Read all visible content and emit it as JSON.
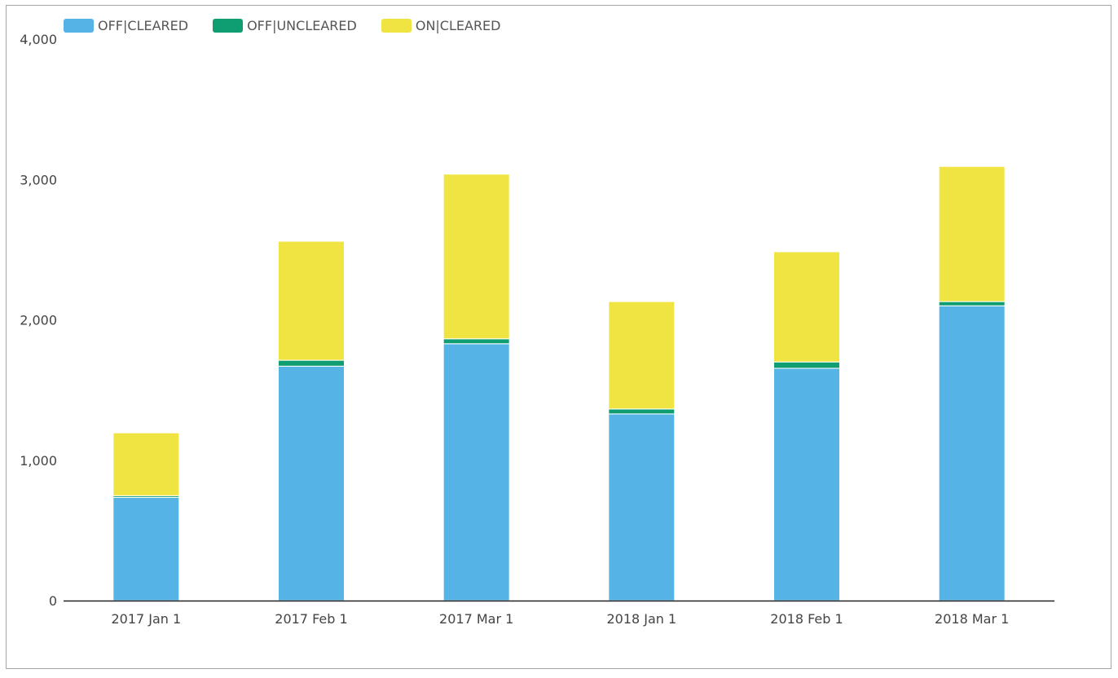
{
  "chart_data": {
    "type": "bar",
    "stacked": true,
    "categories": [
      "2017 Jan 1",
      "2017 Feb 1",
      "2017 Mar 1",
      "2018 Jan 1",
      "2018 Feb 1",
      "2018 Mar 1"
    ],
    "series": [
      {
        "name": "OFF|CLEARED",
        "color": "#56b3e6",
        "values": [
          735,
          1670,
          1830,
          1330,
          1655,
          2100
        ]
      },
      {
        "name": "OFF|UNCLEARED",
        "color": "#0f9e72",
        "values": [
          12,
          42,
          35,
          35,
          45,
          30
        ]
      },
      {
        "name": "ON|CLEARED",
        "color": "#efe442",
        "values": [
          448,
          848,
          1173,
          765,
          785,
          963
        ]
      }
    ],
    "y_ticks": [
      {
        "value": 0,
        "label": "0"
      },
      {
        "value": 1000,
        "label": "1,000"
      },
      {
        "value": 2000,
        "label": "2,000"
      },
      {
        "value": 3000,
        "label": "3,000"
      },
      {
        "value": 4000,
        "label": "4,000"
      }
    ],
    "ylim": [
      0,
      4000
    ],
    "title": "",
    "xlabel": "",
    "ylabel": "",
    "grid": false,
    "legend_position": "top-left"
  }
}
